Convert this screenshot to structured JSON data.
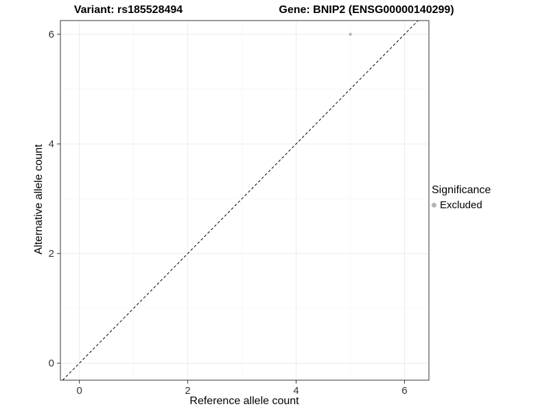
{
  "chart_data": {
    "type": "scatter",
    "title_left": "Variant: rs185528494",
    "title_right": "Gene: BNIP2 (ENSG00000140299)",
    "xlabel": "Reference allele count",
    "ylabel": "Alternative allele count",
    "xlim": [
      -0.35,
      6.45
    ],
    "ylim": [
      -0.31,
      6.25
    ],
    "xticks": [
      0,
      2,
      4,
      6
    ],
    "yticks": [
      0,
      2,
      4,
      6
    ],
    "grid": true,
    "reference_line": {
      "type": "identity",
      "style": "dashed",
      "color": "#000000"
    },
    "series": [
      {
        "name": "Excluded",
        "color": "#b4b4b4",
        "points": [
          {
            "x": 5,
            "y": 6
          }
        ]
      }
    ],
    "legend": {
      "title": "Significance",
      "position": "right",
      "items": [
        {
          "label": "Excluded",
          "color": "#b4b4b4"
        }
      ]
    },
    "colors": {
      "grid_major": "#ebebeb",
      "grid_minor": "#f6f6f6",
      "panel_border": "#333333",
      "axis_text": "#333333",
      "tick_mark": "#333333"
    }
  }
}
